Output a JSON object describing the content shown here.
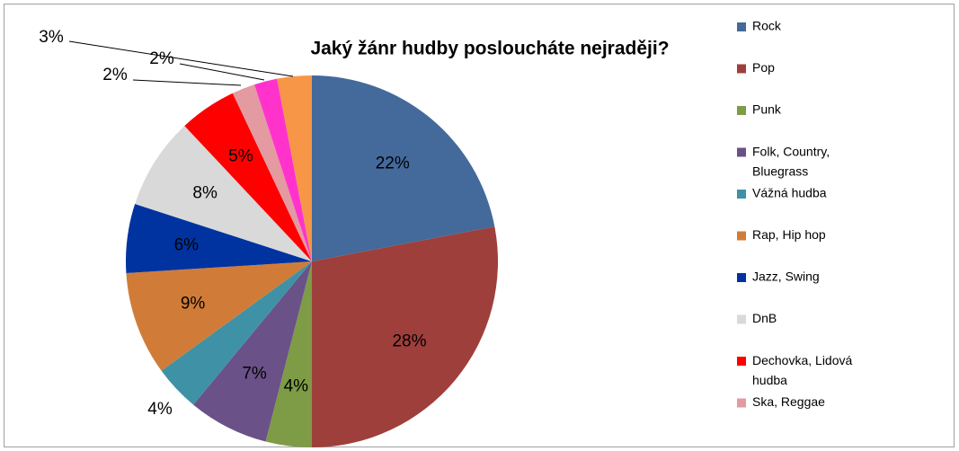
{
  "chart_data": {
    "type": "pie",
    "title": "Jaký žánr hudby posloucháte nejraději?",
    "categories": [
      "Rock",
      "Pop",
      "Punk",
      "Folk, Country, Bluegrass",
      "Vážná hudba",
      "Rap, Hip hop",
      "Jazz, Swing",
      "DnB",
      "Dechovka, Lidová hudba",
      "Ska, Reggae",
      null,
      null
    ],
    "values": [
      22,
      28,
      4,
      7,
      4,
      9,
      6,
      8,
      5,
      2,
      2,
      3
    ],
    "value_labels": [
      "22%",
      "28%",
      "4%",
      "7%",
      "4%",
      "9%",
      "6%",
      "8%",
      "5%",
      "2%",
      "2%",
      "3%"
    ],
    "colors": [
      "#44699b",
      "#9e3f3c",
      "#7e9b45",
      "#6a5188",
      "#3f92a6",
      "#d07c38",
      "#0033a0",
      "#d9d9d9",
      "#ff0000",
      "#e39aa0",
      "#ff33cc",
      "#f79646"
    ],
    "legend": "right"
  }
}
